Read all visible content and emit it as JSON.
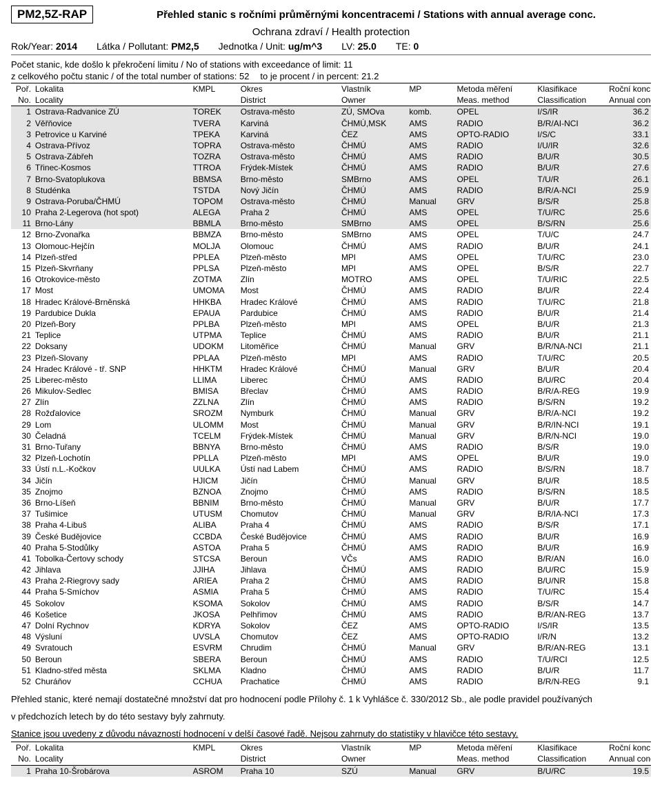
{
  "header": {
    "code": "PM2,5Z-RAP",
    "title": "Přehled stanic s ročními průměrnými koncentracemi / Stations with annual average conc.",
    "subtitle": "Ochrana zdraví / Health protection",
    "year_lbl": "Rok/Year:",
    "year": "2014",
    "pollutant_lbl": "Látka / Pollutant:",
    "pollutant": "PM2,5",
    "unit_lbl": "Jednotka / Unit:",
    "unit": "ug/m^3",
    "lv_lbl": "LV:",
    "lv": "25.0",
    "te_lbl": "TE:",
    "te": "0"
  },
  "info": {
    "exceed": "Počet stanic, kde došlo k překročení limitu / No of stations with exceedance of limit: 11",
    "total1": "z celkového počtu stanic / of the total number of stations: 52",
    "total2": "to je procent / in percent: 21.2"
  },
  "columns_cz": [
    "Poř.",
    "Lokalita",
    "KMPL",
    "Okres",
    "Vlastník",
    "MP",
    "Metoda měření",
    "Klasifikace",
    "Roční konc."
  ],
  "columns_en": [
    "No.",
    "Locality",
    "",
    "District",
    "Owner",
    "",
    "Meas. method",
    "Classification",
    "Annual conc."
  ],
  "rows": [
    {
      "n": "1",
      "loc": "Ostrava-Radvanice ZÚ",
      "kmpl": "TOREK",
      "okr": "Ostrava-město",
      "own": "ZÚ, SMOva",
      "mp": "komb.",
      "met": "OPEL",
      "cls": "I/S/IR",
      "val": "36.2",
      "shade": true
    },
    {
      "n": "2",
      "loc": "Věřňovice",
      "kmpl": "TVERA",
      "okr": "Karviná",
      "own": "ČHMÚ,MSK",
      "mp": "AMS",
      "met": "RADIO",
      "cls": "B/R/AI-NCI",
      "val": "36.2",
      "shade": true
    },
    {
      "n": "3",
      "loc": "Petrovice u Karviné",
      "kmpl": "TPEKA",
      "okr": "Karviná",
      "own": "ČEZ",
      "mp": "AMS",
      "met": "OPTO-RADIO",
      "cls": "I/S/C",
      "val": "33.1",
      "shade": true
    },
    {
      "n": "4",
      "loc": "Ostrava-Přívoz",
      "kmpl": "TOPRA",
      "okr": "Ostrava-město",
      "own": "ČHMÚ",
      "mp": "AMS",
      "met": "RADIO",
      "cls": "I/U/IR",
      "val": "32.6",
      "shade": true
    },
    {
      "n": "5",
      "loc": "Ostrava-Zábřeh",
      "kmpl": "TOZRA",
      "okr": "Ostrava-město",
      "own": "ČHMÚ",
      "mp": "AMS",
      "met": "RADIO",
      "cls": "B/U/R",
      "val": "30.5",
      "shade": true
    },
    {
      "n": "6",
      "loc": "Třinec-Kosmos",
      "kmpl": "TTROA",
      "okr": "Frýdek-Místek",
      "own": "ČHMÚ",
      "mp": "AMS",
      "met": "RADIO",
      "cls": "B/U/R",
      "val": "27.6",
      "shade": true
    },
    {
      "n": "7",
      "loc": "Brno-Svatoplukova",
      "kmpl": "BBMSA",
      "okr": "Brno-město",
      "own": "SMBrno",
      "mp": "AMS",
      "met": "OPEL",
      "cls": "T/U/R",
      "val": "26.1",
      "shade": true
    },
    {
      "n": "8",
      "loc": "Studénka",
      "kmpl": "TSTDA",
      "okr": "Nový Jičín",
      "own": "ČHMÚ",
      "mp": "AMS",
      "met": "RADIO",
      "cls": "B/R/A-NCI",
      "val": "25.9",
      "shade": true
    },
    {
      "n": "9",
      "loc": "Ostrava-Poruba/ČHMÚ",
      "kmpl": "TOPOM",
      "okr": "Ostrava-město",
      "own": "ČHMÚ",
      "mp": "Manual",
      "met": "GRV",
      "cls": "B/S/R",
      "val": "25.8",
      "shade": true
    },
    {
      "n": "10",
      "loc": "Praha 2-Legerova (hot spot)",
      "kmpl": "ALEGA",
      "okr": "Praha 2",
      "own": "ČHMÚ",
      "mp": "AMS",
      "met": "OPEL",
      "cls": "T/U/RC",
      "val": "25.6",
      "shade": true
    },
    {
      "n": "11",
      "loc": "Brno-Lány",
      "kmpl": "BBMLA",
      "okr": "Brno-město",
      "own": "SMBrno",
      "mp": "AMS",
      "met": "OPEL",
      "cls": "B/S/RN",
      "val": "25.6",
      "shade": true
    },
    {
      "n": "12",
      "loc": "Brno-Zvonařka",
      "kmpl": "BBMZA",
      "okr": "Brno-město",
      "own": "SMBrno",
      "mp": "AMS",
      "met": "OPEL",
      "cls": "T/U/C",
      "val": "24.7"
    },
    {
      "n": "13",
      "loc": "Olomouc-Hejčín",
      "kmpl": "MOLJA",
      "okr": "Olomouc",
      "own": "ČHMÚ",
      "mp": "AMS",
      "met": "RADIO",
      "cls": "B/U/R",
      "val": "24.1"
    },
    {
      "n": "14",
      "loc": "Plzeň-střed",
      "kmpl": "PPLEA",
      "okr": "Plzeň-město",
      "own": "MPl",
      "mp": "AMS",
      "met": "OPEL",
      "cls": "T/U/RC",
      "val": "23.0"
    },
    {
      "n": "15",
      "loc": "Plzeň-Skvrňany",
      "kmpl": "PPLSA",
      "okr": "Plzeň-město",
      "own": "MPl",
      "mp": "AMS",
      "met": "OPEL",
      "cls": "B/S/R",
      "val": "22.7"
    },
    {
      "n": "16",
      "loc": "Otrokovice-město",
      "kmpl": "ZOTMA",
      "okr": "Zlín",
      "own": "MOTRO",
      "mp": "AMS",
      "met": "OPEL",
      "cls": "T/U/RIC",
      "val": "22.5"
    },
    {
      "n": "17",
      "loc": "Most",
      "kmpl": "UMOMA",
      "okr": "Most",
      "own": "ČHMÚ",
      "mp": "AMS",
      "met": "RADIO",
      "cls": "B/U/R",
      "val": "22.4"
    },
    {
      "n": "18",
      "loc": "Hradec Králové-Brněnská",
      "kmpl": "HHKBA",
      "okr": "Hradec Králové",
      "own": "ČHMÚ",
      "mp": "AMS",
      "met": "RADIO",
      "cls": "T/U/RC",
      "val": "21.8"
    },
    {
      "n": "19",
      "loc": "Pardubice Dukla",
      "kmpl": "EPAUA",
      "okr": "Pardubice",
      "own": "ČHMÚ",
      "mp": "AMS",
      "met": "RADIO",
      "cls": "B/U/R",
      "val": "21.4"
    },
    {
      "n": "20",
      "loc": "Plzeň-Bory",
      "kmpl": "PPLBA",
      "okr": "Plzeň-město",
      "own": "MPl",
      "mp": "AMS",
      "met": "OPEL",
      "cls": "B/U/R",
      "val": "21.3"
    },
    {
      "n": "21",
      "loc": "Teplice",
      "kmpl": "UTPMA",
      "okr": "Teplice",
      "own": "ČHMÚ",
      "mp": "AMS",
      "met": "RADIO",
      "cls": "B/U/R",
      "val": "21.1"
    },
    {
      "n": "22",
      "loc": "Doksany",
      "kmpl": "UDOKM",
      "okr": "Litoměřice",
      "own": "ČHMÚ",
      "mp": "Manual",
      "met": "GRV",
      "cls": "B/R/NA-NCI",
      "val": "21.1"
    },
    {
      "n": "23",
      "loc": "Plzeň-Slovany",
      "kmpl": "PPLAA",
      "okr": "Plzeň-město",
      "own": "MPl",
      "mp": "AMS",
      "met": "RADIO",
      "cls": "T/U/RC",
      "val": "20.5"
    },
    {
      "n": "24",
      "loc": "Hradec Králové - tř. SNP",
      "kmpl": "HHKTM",
      "okr": "Hradec Králové",
      "own": "ČHMÚ",
      "mp": "Manual",
      "met": "GRV",
      "cls": "B/U/R",
      "val": "20.4"
    },
    {
      "n": "25",
      "loc": "Liberec-město",
      "kmpl": "LLIMA",
      "okr": "Liberec",
      "own": "ČHMÚ",
      "mp": "AMS",
      "met": "RADIO",
      "cls": "B/U/RC",
      "val": "20.4"
    },
    {
      "n": "26",
      "loc": "Mikulov-Sedlec",
      "kmpl": "BMISA",
      "okr": "Břeclav",
      "own": "ČHMÚ",
      "mp": "AMS",
      "met": "RADIO",
      "cls": "B/R/A-REG",
      "val": "19.9"
    },
    {
      "n": "27",
      "loc": "Zlín",
      "kmpl": "ZZLNA",
      "okr": "Zlín",
      "own": "ČHMÚ",
      "mp": "AMS",
      "met": "RADIO",
      "cls": "B/S/RN",
      "val": "19.2"
    },
    {
      "n": "28",
      "loc": "Rožďalovice",
      "kmpl": "SROZM",
      "okr": "Nymburk",
      "own": "ČHMÚ",
      "mp": "Manual",
      "met": "GRV",
      "cls": "B/R/A-NCI",
      "val": "19.2"
    },
    {
      "n": "29",
      "loc": "Lom",
      "kmpl": "ULOMM",
      "okr": "Most",
      "own": "ČHMÚ",
      "mp": "Manual",
      "met": "GRV",
      "cls": "B/R/IN-NCI",
      "val": "19.1"
    },
    {
      "n": "30",
      "loc": "Čeladná",
      "kmpl": "TCELM",
      "okr": "Frýdek-Místek",
      "own": "ČHMÚ",
      "mp": "Manual",
      "met": "GRV",
      "cls": "B/R/N-NCI",
      "val": "19.0"
    },
    {
      "n": "31",
      "loc": "Brno-Tuřany",
      "kmpl": "BBNYA",
      "okr": "Brno-město",
      "own": "ČHMÚ",
      "mp": "AMS",
      "met": "RADIO",
      "cls": "B/S/R",
      "val": "19.0"
    },
    {
      "n": "32",
      "loc": "Plzeň-Lochotín",
      "kmpl": "PPLLA",
      "okr": "Plzeň-město",
      "own": "MPl",
      "mp": "AMS",
      "met": "OPEL",
      "cls": "B/U/R",
      "val": "19.0"
    },
    {
      "n": "33",
      "loc": "Ústí n.L.-Kočkov",
      "kmpl": "UULKA",
      "okr": "Ústí nad Labem",
      "own": "ČHMÚ",
      "mp": "AMS",
      "met": "RADIO",
      "cls": "B/S/RN",
      "val": "18.7"
    },
    {
      "n": "34",
      "loc": "Jičín",
      "kmpl": "HJICM",
      "okr": "Jičín",
      "own": "ČHMÚ",
      "mp": "Manual",
      "met": "GRV",
      "cls": "B/U/R",
      "val": "18.5"
    },
    {
      "n": "35",
      "loc": "Znojmo",
      "kmpl": "BZNOA",
      "okr": "Znojmo",
      "own": "ČHMÚ",
      "mp": "AMS",
      "met": "RADIO",
      "cls": "B/S/RN",
      "val": "18.5"
    },
    {
      "n": "36",
      "loc": "Brno-Líšeň",
      "kmpl": "BBNIM",
      "okr": "Brno-město",
      "own": "ČHMÚ",
      "mp": "Manual",
      "met": "GRV",
      "cls": "B/U/R",
      "val": "17.7"
    },
    {
      "n": "37",
      "loc": "Tušimice",
      "kmpl": "UTUSM",
      "okr": "Chomutov",
      "own": "ČHMÚ",
      "mp": "Manual",
      "met": "GRV",
      "cls": "B/R/IA-NCI",
      "val": "17.3"
    },
    {
      "n": "38",
      "loc": "Praha 4-Libuš",
      "kmpl": "ALIBA",
      "okr": "Praha 4",
      "own": "ČHMÚ",
      "mp": "AMS",
      "met": "RADIO",
      "cls": "B/S/R",
      "val": "17.1"
    },
    {
      "n": "39",
      "loc": "České Budějovice",
      "kmpl": "CCBDA",
      "okr": "České Budějovice",
      "own": "ČHMÚ",
      "mp": "AMS",
      "met": "RADIO",
      "cls": "B/U/R",
      "val": "16.9"
    },
    {
      "n": "40",
      "loc": "Praha 5-Stodůlky",
      "kmpl": "ASTOA",
      "okr": "Praha 5",
      "own": "ČHMÚ",
      "mp": "AMS",
      "met": "RADIO",
      "cls": "B/U/R",
      "val": "16.9"
    },
    {
      "n": "41",
      "loc": "Tobolka-Čertovy schody",
      "kmpl": "STCSA",
      "okr": "Beroun",
      "own": "VČs",
      "mp": "AMS",
      "met": "RADIO",
      "cls": "B/R/AN",
      "val": "16.0"
    },
    {
      "n": "42",
      "loc": "Jihlava",
      "kmpl": "JJIHA",
      "okr": "Jihlava",
      "own": "ČHMÚ",
      "mp": "AMS",
      "met": "RADIO",
      "cls": "B/U/RC",
      "val": "15.9"
    },
    {
      "n": "43",
      "loc": "Praha 2-Riegrovy sady",
      "kmpl": "ARIEA",
      "okr": "Praha 2",
      "own": "ČHMÚ",
      "mp": "AMS",
      "met": "RADIO",
      "cls": "B/U/NR",
      "val": "15.8"
    },
    {
      "n": "44",
      "loc": "Praha 5-Smíchov",
      "kmpl": "ASMIA",
      "okr": "Praha 5",
      "own": "ČHMÚ",
      "mp": "AMS",
      "met": "RADIO",
      "cls": "T/U/RC",
      "val": "15.4"
    },
    {
      "n": "45",
      "loc": "Sokolov",
      "kmpl": "KSOMA",
      "okr": "Sokolov",
      "own": "ČHMÚ",
      "mp": "AMS",
      "met": "RADIO",
      "cls": "B/S/R",
      "val": "14.7"
    },
    {
      "n": "46",
      "loc": "Košetice",
      "kmpl": "JKOSA",
      "okr": "Pelhřimov",
      "own": "ČHMÚ",
      "mp": "AMS",
      "met": "RADIO",
      "cls": "B/R/AN-REG",
      "val": "13.7"
    },
    {
      "n": "47",
      "loc": "Dolní Rychnov",
      "kmpl": "KDRYA",
      "okr": "Sokolov",
      "own": "ČEZ",
      "mp": "AMS",
      "met": "OPTO-RADIO",
      "cls": "I/S/IR",
      "val": "13.5"
    },
    {
      "n": "48",
      "loc": "Výsluní",
      "kmpl": "UVSLA",
      "okr": "Chomutov",
      "own": "ČEZ",
      "mp": "AMS",
      "met": "OPTO-RADIO",
      "cls": "I/R/N",
      "val": "13.2"
    },
    {
      "n": "49",
      "loc": "Svratouch",
      "kmpl": "ESVRM",
      "okr": "Chrudim",
      "own": "ČHMÚ",
      "mp": "Manual",
      "met": "GRV",
      "cls": "B/R/AN-REG",
      "val": "13.1"
    },
    {
      "n": "50",
      "loc": "Beroun",
      "kmpl": "SBERA",
      "okr": "Beroun",
      "own": "ČHMÚ",
      "mp": "AMS",
      "met": "RADIO",
      "cls": "T/U/RCI",
      "val": "12.5"
    },
    {
      "n": "51",
      "loc": "Kladno-střed města",
      "kmpl": "SKLMA",
      "okr": "Kladno",
      "own": "ČHMÚ",
      "mp": "AMS",
      "met": "RADIO",
      "cls": "B/U/R",
      "val": "11.7"
    },
    {
      "n": "52",
      "loc": "Churáňov",
      "kmpl": "CCHUA",
      "okr": "Prachatice",
      "own": "ČHMÚ",
      "mp": "AMS",
      "met": "RADIO",
      "cls": "B/R/N-REG",
      "val": "9.1"
    }
  ],
  "note1": "Přehled stanic, které nemají dostatečné množství dat pro hodnocení podle Přílohy č. 1 k Vyhlášce č. 330/2012 Sb., ale podle pravidel používaných",
  "note2": "v předchozích letech by do této sestavy byly zahrnuty.",
  "note3": "Stanice jsou uvedeny z důvodu návazností hodnocení v delší časové řadě. Nejsou zahrnuty do statistiky v hlavičce této sestavy.",
  "rows2": [
    {
      "n": "1",
      "loc": "Praha 10-Šrobárova",
      "kmpl": "ASROM",
      "okr": "Praha 10",
      "own": "SZÚ",
      "mp": "Manual",
      "met": "GRV",
      "cls": "B/U/RC",
      "val": "19.5",
      "shade": true
    }
  ],
  "style": {
    "shade_color": "#e4e4e4",
    "border_color": "#000000",
    "font_family": "Arial, Helvetica, sans-serif",
    "body_fontsize": 12,
    "title_fontsize": 15
  }
}
